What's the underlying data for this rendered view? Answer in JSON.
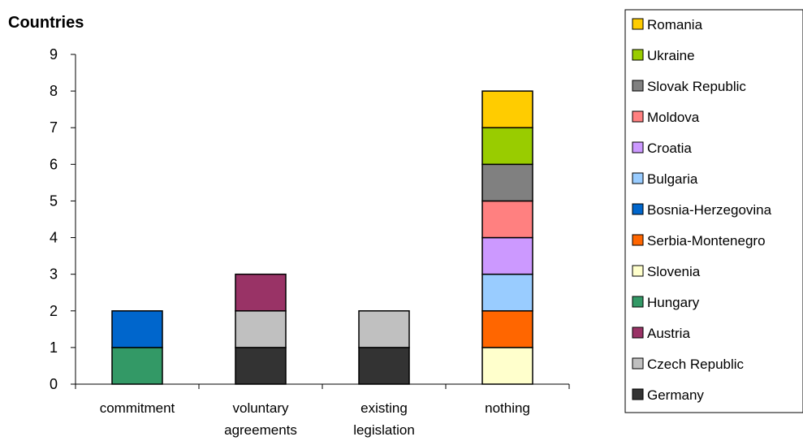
{
  "chart_data": {
    "type": "bar",
    "stacked": true,
    "title": "",
    "ylabel": "Countries",
    "xlabel": "",
    "ylim": [
      0,
      9
    ],
    "yticks": [
      0,
      1,
      2,
      3,
      4,
      5,
      6,
      7,
      8,
      9
    ],
    "grid": false,
    "legend_position": "right",
    "categories": [
      [
        "commitment"
      ],
      [
        "voluntary",
        "agreements"
      ],
      [
        "existing",
        "legislation"
      ],
      [
        "nothing"
      ]
    ],
    "series": [
      {
        "name": "Germany",
        "color": "#333333",
        "values": [
          0,
          1,
          1,
          0
        ]
      },
      {
        "name": "Czech Republic",
        "color": "#c0c0c0",
        "values": [
          0,
          1,
          1,
          0
        ]
      },
      {
        "name": "Austria",
        "color": "#993366",
        "values": [
          0,
          1,
          0,
          0
        ]
      },
      {
        "name": "Hungary",
        "color": "#339966",
        "values": [
          1,
          0,
          0,
          0
        ]
      },
      {
        "name": "Slovenia",
        "color": "#ffffcc",
        "values": [
          0,
          0,
          0,
          1
        ]
      },
      {
        "name": "Serbia-Montenegro",
        "color": "#ff6600",
        "values": [
          0,
          0,
          0,
          1
        ]
      },
      {
        "name": "Bosnia-Herzegovina",
        "color": "#0066cc",
        "values": [
          1,
          0,
          0,
          0
        ]
      },
      {
        "name": "Bulgaria",
        "color": "#99ccff",
        "values": [
          0,
          0,
          0,
          1
        ]
      },
      {
        "name": "Croatia",
        "color": "#cc99ff",
        "values": [
          0,
          0,
          0,
          1
        ]
      },
      {
        "name": "Moldova",
        "color": "#ff8080",
        "values": [
          0,
          0,
          0,
          1
        ]
      },
      {
        "name": "Slovak Republic",
        "color": "#808080",
        "values": [
          0,
          0,
          0,
          1
        ]
      },
      {
        "name": "Ukraine",
        "color": "#99cc00",
        "values": [
          0,
          0,
          0,
          1
        ]
      },
      {
        "name": "Romania",
        "color": "#ffcc00",
        "values": [
          0,
          0,
          0,
          1
        ]
      }
    ]
  }
}
